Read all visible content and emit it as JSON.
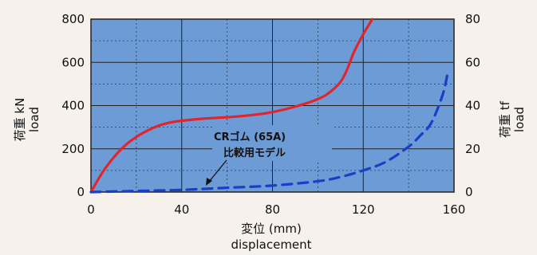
{
  "chart_data": {
    "type": "line",
    "x_ticks": [
      0,
      40,
      80,
      120,
      160
    ],
    "y_left_ticks": [
      0,
      200,
      400,
      600,
      800
    ],
    "y_right_ticks": [
      0,
      20,
      40,
      60,
      80
    ],
    "xlim": [
      0,
      160
    ],
    "ylim_left": [
      0,
      800
    ],
    "ylim_right": [
      0,
      80
    ],
    "xlabel": "変位 (mm)",
    "xlabel_en": "displacement",
    "ylabel_left": "荷重 kN",
    "ylabel_left_en": "load",
    "ylabel_right": "荷重 tf",
    "ylabel_right_en": "load",
    "grid": true,
    "plot_background": "#6c9bd6",
    "series": [
      {
        "style": "solid",
        "color": "#e0262c",
        "x": [
          0,
          5,
          10,
          15,
          20,
          25,
          30,
          35,
          40,
          50,
          60,
          70,
          80,
          90,
          100,
          105,
          110,
          113,
          116,
          120,
          124
        ],
        "y": [
          0,
          90,
          160,
          215,
          255,
          285,
          308,
          322,
          330,
          340,
          346,
          355,
          370,
          395,
          430,
          460,
          510,
          570,
          650,
          730,
          800
        ]
      },
      {
        "style": "dashed",
        "color": "#1a3fc7",
        "x": [
          0,
          20,
          40,
          60,
          80,
          100,
          110,
          120,
          130,
          140,
          145,
          150,
          155,
          157
        ],
        "y": [
          0,
          5,
          10,
          20,
          30,
          50,
          70,
          100,
          140,
          210,
          260,
          320,
          450,
          540
        ]
      }
    ],
    "annotations": [
      {
        "text": "CRゴム (65A)"
      },
      {
        "text": "比較用モデル"
      }
    ]
  }
}
